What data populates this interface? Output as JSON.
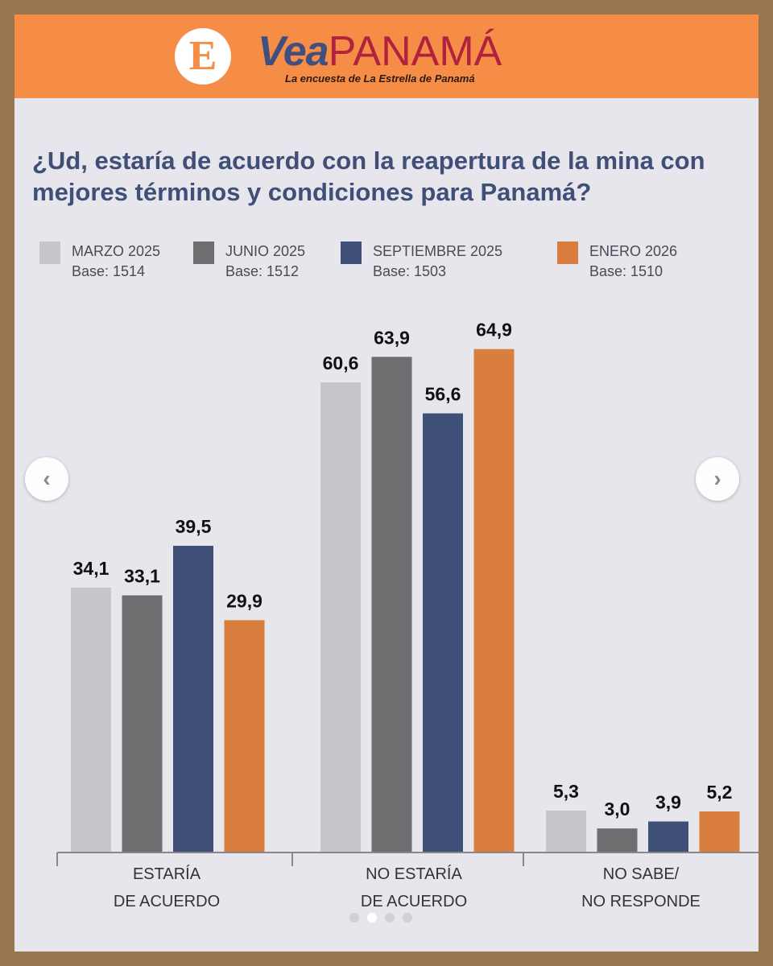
{
  "header": {
    "logo_letter": "E",
    "brand_vea": "Vea",
    "brand_panama": "PANAMÁ",
    "tagline": "La encuesta de La Estrella de Panamá"
  },
  "question": "¿Ud, estaría de acuerdo con la reapertura de la mina con mejores términos y condiciones para Panamá?",
  "legend": [
    {
      "name": "MARZO 2025",
      "base": "Base: 1514",
      "color": "#c5c5ca"
    },
    {
      "name": "JUNIO 2025",
      "base": "Base: 1512",
      "color": "#6e6e70"
    },
    {
      "name": "SEPTIEMBRE 2025",
      "base": "Base: 1503",
      "color": "#3f5078"
    },
    {
      "name": "ENERO 2026",
      "base": "Base: 1510",
      "color": "#d97e3e"
    }
  ],
  "chart_data": {
    "type": "bar",
    "title": "¿Ud, estaría de acuerdo con la reapertura de la mina con mejores términos y condiciones para Panamá?",
    "categories": [
      [
        "ESTARÍA",
        "DE ACUERDO"
      ],
      [
        "NO ESTARÍA",
        "DE ACUERDO"
      ],
      [
        "NO SABE/",
        "NO RESPONDE"
      ]
    ],
    "series": [
      {
        "name": "MARZO 2025",
        "color": "#c5c5ca",
        "values": [
          34.1,
          60.6,
          5.3
        ],
        "labels": [
          "34,1",
          "60,6",
          "5,3"
        ]
      },
      {
        "name": "JUNIO 2025",
        "color": "#6e6e70",
        "values": [
          33.1,
          63.9,
          3.0
        ],
        "labels": [
          "33,1",
          "63,9",
          "3,0"
        ]
      },
      {
        "name": "SEPTIEMBRE 2025",
        "color": "#3f5078",
        "values": [
          39.5,
          56.6,
          3.9
        ],
        "labels": [
          "39,5",
          "56,6",
          "3,9"
        ]
      },
      {
        "name": "ENERO 2026",
        "color": "#d97e3e",
        "values": [
          29.9,
          64.9,
          5.2
        ],
        "labels": [
          "29,9",
          "64,9",
          "5,2"
        ]
      }
    ],
    "grid": false,
    "legend_position": "top"
  },
  "carousel": {
    "prev_icon": "chevron-left-icon",
    "next_icon": "chevron-right-icon",
    "prev_glyph": "‹",
    "next_glyph": "›",
    "page_count": 4,
    "active_page": 2
  }
}
